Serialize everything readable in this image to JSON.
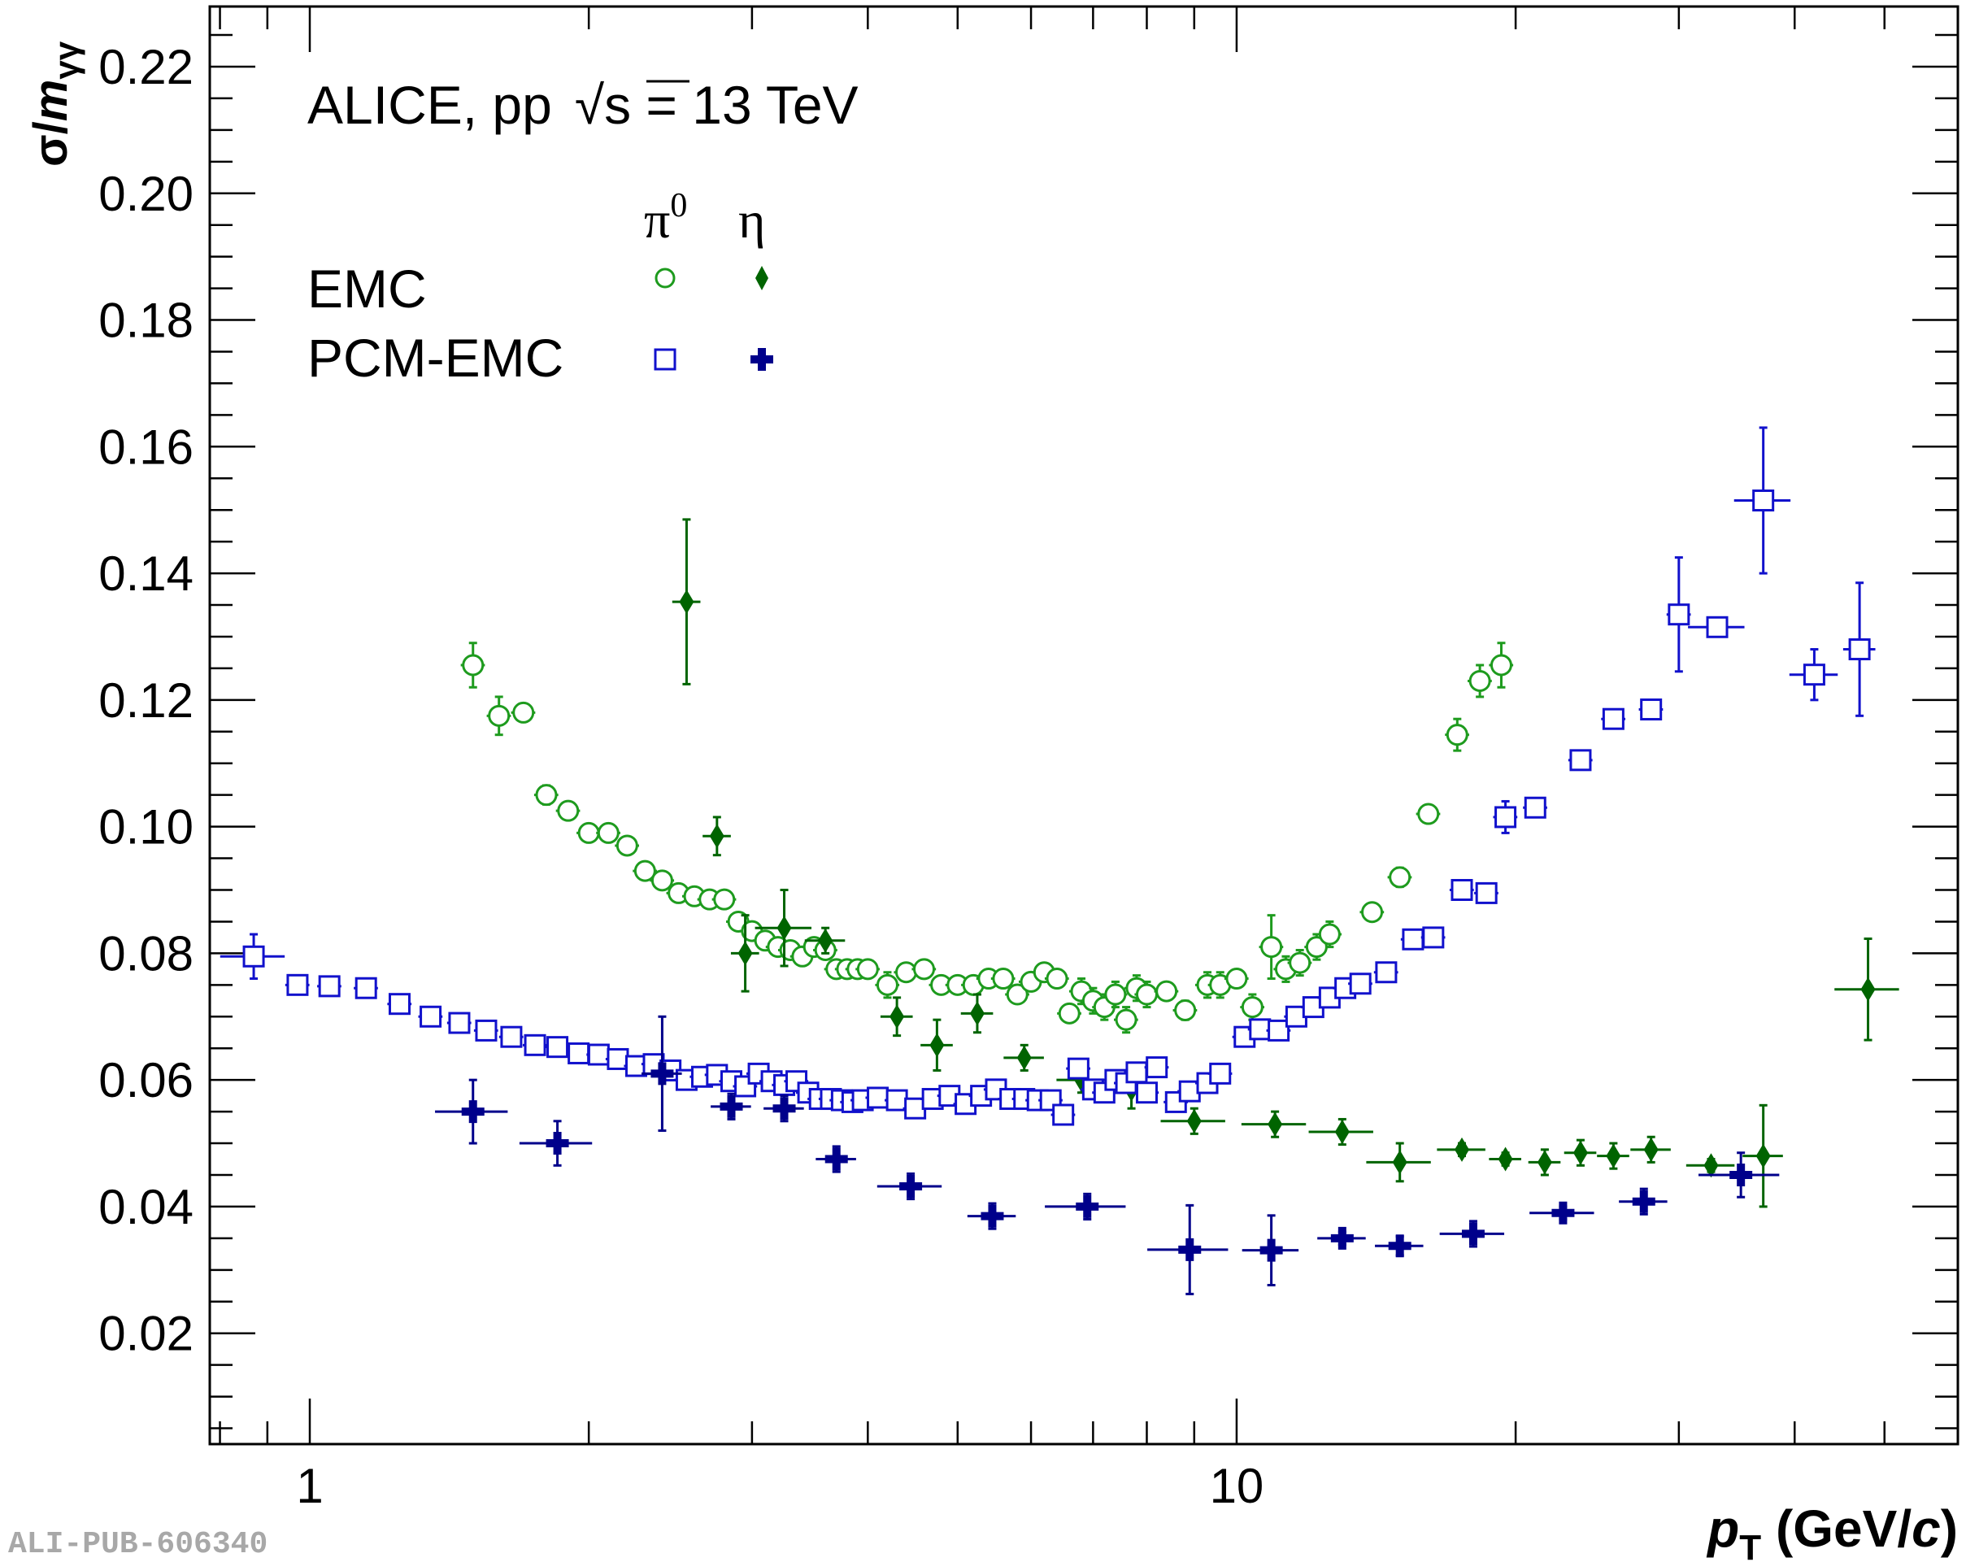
{
  "chart_data": {
    "type": "scatter",
    "x_scale": "log",
    "xlim": [
      0.78,
      60
    ],
    "ylim": [
      0.0025,
      0.2295
    ],
    "xlabel_main": "p",
    "xlabel_sub": "T",
    "xlabel_unit_pre": " (GeV/",
    "xlabel_unit_c": "c",
    "xlabel_unit_post": ")",
    "ylabel_main": "σ/",
    "ylabel_m": "m",
    "ylabel_sub": "γγ",
    "x_ticks": [
      1,
      10
    ],
    "x_tick_labels": [
      "1",
      "10"
    ],
    "y_ticks": [
      0.02,
      0.04,
      0.06,
      0.08,
      0.1,
      0.12,
      0.14,
      0.16,
      0.18,
      0.2,
      0.22
    ],
    "y_tick_labels": [
      "0.02",
      "0.04",
      "0.06",
      "0.08",
      "0.10",
      "0.12",
      "0.14",
      "0.16",
      "0.18",
      "0.20",
      "0.22"
    ],
    "title_experiment": "ALICE, pp",
    "title_energy_prefix": "√",
    "title_energy_s": "s",
    "title_energy_rest": " = 13 TeV",
    "legend": {
      "col_pi0": "π",
      "col_pi0_sup": "0",
      "col_eta": "η",
      "row_emc": "EMC",
      "row_pcm": "PCM-EMC"
    },
    "watermark": "ALI-PUB-606340",
    "series": [
      {
        "name": "EMC π0",
        "marker": "open-circle",
        "color": "#1e9b1e",
        "points": [
          [
            1.5,
            0.1255,
            0.0035,
            0.03
          ],
          [
            1.6,
            0.1175,
            0.003,
            0.03
          ],
          [
            1.7,
            0.118,
            0.001,
            0.03
          ],
          [
            1.8,
            0.105,
            0.0015,
            0.03
          ],
          [
            1.9,
            0.1025,
            0.001,
            0.03
          ],
          [
            2.0,
            0.099,
            0.001,
            0.03
          ],
          [
            2.1,
            0.099,
            0.001,
            0.03
          ],
          [
            2.2,
            0.097,
            0.001,
            0.03
          ],
          [
            2.3,
            0.093,
            0.001,
            0.03
          ],
          [
            2.4,
            0.0915,
            0.001,
            0.03
          ],
          [
            2.5,
            0.0895,
            0.001,
            0.03
          ],
          [
            2.6,
            0.089,
            0.001,
            0.03
          ],
          [
            2.7,
            0.0885,
            0.001,
            0.03
          ],
          [
            2.8,
            0.0885,
            0.001,
            0.03
          ],
          [
            2.9,
            0.085,
            0.001,
            0.03
          ],
          [
            3.0,
            0.0835,
            0.001,
            0.03
          ],
          [
            3.1,
            0.082,
            0.001,
            0.03
          ],
          [
            3.2,
            0.081,
            0.001,
            0.03
          ],
          [
            3.3,
            0.0805,
            0.001,
            0.03
          ],
          [
            3.4,
            0.0795,
            0.001,
            0.03
          ],
          [
            3.5,
            0.081,
            0.001,
            0.03
          ],
          [
            3.6,
            0.0805,
            0.001,
            0.03
          ],
          [
            3.7,
            0.0775,
            0.001,
            0.03
          ],
          [
            3.8,
            0.0775,
            0.001,
            0.03
          ],
          [
            3.9,
            0.0775,
            0.001,
            0.03
          ],
          [
            4.0,
            0.0775,
            0.001,
            0.03
          ],
          [
            4.2,
            0.075,
            0.002,
            0.03
          ],
          [
            4.4,
            0.077,
            0.001,
            0.03
          ],
          [
            4.6,
            0.0775,
            0.001,
            0.03
          ],
          [
            4.8,
            0.075,
            0.001,
            0.03
          ],
          [
            5.0,
            0.075,
            0.001,
            0.03
          ],
          [
            5.2,
            0.075,
            0.001,
            0.03
          ],
          [
            5.4,
            0.076,
            0.001,
            0.03
          ],
          [
            5.6,
            0.076,
            0.001,
            0.03
          ],
          [
            5.8,
            0.0735,
            0.001,
            0.03
          ],
          [
            6.0,
            0.0755,
            0.001,
            0.03
          ],
          [
            6.2,
            0.077,
            0.001,
            0.03
          ],
          [
            6.4,
            0.076,
            0.001,
            0.03
          ],
          [
            6.6,
            0.0705,
            0.001,
            0.03
          ],
          [
            6.8,
            0.074,
            0.002,
            0.03
          ],
          [
            7.0,
            0.0725,
            0.002,
            0.03
          ],
          [
            7.2,
            0.0715,
            0.002,
            0.03
          ],
          [
            7.4,
            0.0735,
            0.002,
            0.03
          ],
          [
            7.6,
            0.0695,
            0.002,
            0.03
          ],
          [
            7.8,
            0.0745,
            0.002,
            0.03
          ],
          [
            8.0,
            0.0735,
            0.002,
            0.03
          ],
          [
            8.4,
            0.074,
            0.001,
            0.03
          ],
          [
            8.8,
            0.071,
            0.0015,
            0.03
          ],
          [
            9.3,
            0.075,
            0.002,
            0.03
          ],
          [
            9.6,
            0.075,
            0.002,
            0.03
          ],
          [
            10.0,
            0.076,
            0.001,
            0.03
          ],
          [
            10.4,
            0.0715,
            0.002,
            0.03
          ],
          [
            10.9,
            0.081,
            0.005,
            0.03
          ],
          [
            11.3,
            0.0775,
            0.002,
            0.03
          ],
          [
            11.7,
            0.0785,
            0.002,
            0.03
          ],
          [
            12.2,
            0.081,
            0.002,
            0.03
          ],
          [
            12.6,
            0.083,
            0.002,
            0.03
          ],
          [
            14.0,
            0.0865,
            0.001,
            0.03
          ],
          [
            15.0,
            0.092,
            0.0015,
            0.03
          ],
          [
            16.1,
            0.102,
            0.001,
            0.03
          ],
          [
            17.3,
            0.1145,
            0.0025,
            0.03
          ],
          [
            18.3,
            0.123,
            0.0025,
            0.03
          ],
          [
            19.3,
            0.1255,
            0.0035,
            0.03
          ]
        ]
      },
      {
        "name": "EMC η",
        "marker": "filled-diamond",
        "color": "#006400",
        "points": [
          [
            2.55,
            0.1355,
            0.013,
            0.035
          ],
          [
            2.75,
            0.0985,
            0.003,
            0.035
          ],
          [
            2.95,
            0.08,
            0.006,
            0.035
          ],
          [
            3.25,
            0.084,
            0.006,
            0.07
          ],
          [
            3.6,
            0.082,
            0.002,
            0.05
          ],
          [
            4.3,
            0.07,
            0.003,
            0.04
          ],
          [
            4.75,
            0.0655,
            0.004,
            0.04
          ],
          [
            5.25,
            0.0705,
            0.003,
            0.04
          ],
          [
            5.9,
            0.0635,
            0.002,
            0.05
          ],
          [
            6.8,
            0.06,
            0.002,
            0.06
          ],
          [
            7.7,
            0.0585,
            0.003,
            0.06
          ],
          [
            9.0,
            0.0535,
            0.002,
            0.08
          ],
          [
            11.0,
            0.053,
            0.002,
            0.08
          ],
          [
            13.0,
            0.0518,
            0.002,
            0.08
          ],
          [
            15.0,
            0.047,
            0.003,
            0.08
          ],
          [
            17.5,
            0.049,
            0.001,
            0.06
          ],
          [
            19.5,
            0.0475,
            0.001,
            0.04
          ],
          [
            21.5,
            0.047,
            0.002,
            0.04
          ],
          [
            23.5,
            0.0485,
            0.002,
            0.04
          ],
          [
            25.5,
            0.048,
            0.002,
            0.04
          ],
          [
            28.0,
            0.049,
            0.002,
            0.05
          ],
          [
            32.5,
            0.0465,
            0.001,
            0.06
          ],
          [
            37.0,
            0.048,
            0.008,
            0.05
          ],
          [
            48.0,
            0.0743,
            0.008,
            0.08
          ]
        ]
      },
      {
        "name": "PCM-EMC π0",
        "marker": "open-square",
        "color": "#1111cc",
        "points": [
          [
            0.87,
            0.0795,
            0.0035,
            0.08
          ],
          [
            0.97,
            0.075,
            0.001,
            0.03
          ],
          [
            1.05,
            0.0748,
            0.001,
            0.03
          ],
          [
            1.15,
            0.0745,
            0.001,
            0.03
          ],
          [
            1.25,
            0.072,
            0.001,
            0.03
          ],
          [
            1.35,
            0.07,
            0.001,
            0.03
          ],
          [
            1.45,
            0.069,
            0.001,
            0.03
          ],
          [
            1.55,
            0.0678,
            0.001,
            0.03
          ],
          [
            1.65,
            0.0668,
            0.001,
            0.03
          ],
          [
            1.75,
            0.0655,
            0.001,
            0.03
          ],
          [
            1.85,
            0.0652,
            0.001,
            0.03
          ],
          [
            1.95,
            0.0642,
            0.001,
            0.03
          ],
          [
            2.05,
            0.064,
            0.001,
            0.03
          ],
          [
            2.15,
            0.0633,
            0.001,
            0.03
          ],
          [
            2.25,
            0.0622,
            0.001,
            0.03
          ],
          [
            2.35,
            0.0625,
            0.001,
            0.03
          ],
          [
            2.45,
            0.0615,
            0.001,
            0.03
          ],
          [
            2.55,
            0.06,
            0.001,
            0.03
          ],
          [
            2.65,
            0.0605,
            0.001,
            0.03
          ],
          [
            2.75,
            0.0608,
            0.001,
            0.03
          ],
          [
            2.85,
            0.0598,
            0.001,
            0.03
          ],
          [
            2.95,
            0.059,
            0.001,
            0.03
          ],
          [
            3.05,
            0.061,
            0.001,
            0.03
          ],
          [
            3.15,
            0.0598,
            0.001,
            0.03
          ],
          [
            3.25,
            0.0592,
            0.001,
            0.03
          ],
          [
            3.35,
            0.0598,
            0.001,
            0.03
          ],
          [
            3.45,
            0.058,
            0.001,
            0.03
          ],
          [
            3.55,
            0.057,
            0.001,
            0.03
          ],
          [
            3.65,
            0.057,
            0.001,
            0.03
          ],
          [
            3.75,
            0.0568,
            0.001,
            0.03
          ],
          [
            3.85,
            0.0565,
            0.001,
            0.03
          ],
          [
            3.95,
            0.0568,
            0.001,
            0.03
          ],
          [
            4.1,
            0.0572,
            0.001,
            0.03
          ],
          [
            4.3,
            0.0568,
            0.001,
            0.03
          ],
          [
            4.5,
            0.0555,
            0.001,
            0.03
          ],
          [
            4.7,
            0.057,
            0.001,
            0.03
          ],
          [
            4.9,
            0.0575,
            0.001,
            0.03
          ],
          [
            5.1,
            0.0562,
            0.001,
            0.03
          ],
          [
            5.3,
            0.0575,
            0.001,
            0.03
          ],
          [
            5.5,
            0.0585,
            0.001,
            0.03
          ],
          [
            5.7,
            0.057,
            0.001,
            0.03
          ],
          [
            5.9,
            0.057,
            0.001,
            0.03
          ],
          [
            6.1,
            0.0568,
            0.001,
            0.03
          ],
          [
            6.3,
            0.0568,
            0.001,
            0.03
          ],
          [
            6.5,
            0.0545,
            0.001,
            0.03
          ],
          [
            6.75,
            0.0618,
            0.001,
            0.03
          ],
          [
            7.0,
            0.0585,
            0.001,
            0.03
          ],
          [
            7.2,
            0.058,
            0.001,
            0.03
          ],
          [
            7.4,
            0.06,
            0.001,
            0.03
          ],
          [
            7.6,
            0.0595,
            0.001,
            0.03
          ],
          [
            7.8,
            0.0612,
            0.001,
            0.03
          ],
          [
            8.0,
            0.058,
            0.001,
            0.03
          ],
          [
            8.2,
            0.062,
            0.001,
            0.03
          ],
          [
            8.6,
            0.0565,
            0.001,
            0.03
          ],
          [
            8.9,
            0.0582,
            0.001,
            0.03
          ],
          [
            9.3,
            0.0595,
            0.001,
            0.03
          ],
          [
            9.6,
            0.061,
            0.001,
            0.03
          ],
          [
            10.2,
            0.0668,
            0.001,
            0.03
          ],
          [
            10.6,
            0.068,
            0.001,
            0.03
          ],
          [
            11.1,
            0.0678,
            0.001,
            0.03
          ],
          [
            11.6,
            0.07,
            0.001,
            0.03
          ],
          [
            12.1,
            0.0715,
            0.001,
            0.03
          ],
          [
            12.6,
            0.073,
            0.001,
            0.03
          ],
          [
            13.1,
            0.0745,
            0.001,
            0.03
          ],
          [
            13.6,
            0.0752,
            0.001,
            0.03
          ],
          [
            14.5,
            0.077,
            0.001,
            0.03
          ],
          [
            15.5,
            0.0822,
            0.001,
            0.03
          ],
          [
            16.3,
            0.0825,
            0.001,
            0.03
          ],
          [
            17.5,
            0.09,
            0.001,
            0.03
          ],
          [
            18.6,
            0.0895,
            0.001,
            0.03
          ],
          [
            19.5,
            0.1015,
            0.0025,
            0.03
          ],
          [
            21.0,
            0.103,
            0.001,
            0.03
          ],
          [
            23.5,
            0.1105,
            0.001,
            0.03
          ],
          [
            25.5,
            0.117,
            0.001,
            0.03
          ],
          [
            28.0,
            0.1185,
            0.001,
            0.03
          ],
          [
            30.0,
            0.1335,
            0.009,
            0.03
          ],
          [
            33.0,
            0.1315,
            0.0015,
            0.07
          ],
          [
            37.0,
            0.1515,
            0.0115,
            0.07
          ],
          [
            42.0,
            0.124,
            0.004,
            0.06
          ],
          [
            47.0,
            0.128,
            0.0105,
            0.04
          ]
        ]
      },
      {
        "name": "PCM-EMC η",
        "marker": "filled-cross",
        "color": "#00008b",
        "points": [
          [
            1.5,
            0.055,
            0.005,
            0.09
          ],
          [
            1.85,
            0.05,
            0.0035,
            0.09
          ],
          [
            2.4,
            0.061,
            0.009,
            0.05
          ],
          [
            2.85,
            0.0558,
            0.002,
            0.05
          ],
          [
            3.25,
            0.0555,
            0.002,
            0.05
          ],
          [
            3.7,
            0.0475,
            0.002,
            0.05
          ],
          [
            4.45,
            0.0432,
            0.002,
            0.08
          ],
          [
            5.45,
            0.0385,
            0.002,
            0.06
          ],
          [
            6.9,
            0.04,
            0.002,
            0.1
          ],
          [
            8.9,
            0.0332,
            0.007,
            0.1
          ],
          [
            10.9,
            0.0331,
            0.0055,
            0.07
          ],
          [
            13.0,
            0.035,
            0.001,
            0.06
          ],
          [
            15.0,
            0.0338,
            0.0015,
            0.06
          ],
          [
            18.0,
            0.0357,
            0.002,
            0.08
          ],
          [
            22.5,
            0.039,
            0.001,
            0.08
          ],
          [
            27.5,
            0.0408,
            0.002,
            0.06
          ],
          [
            35.0,
            0.045,
            0.0035,
            0.1
          ]
        ]
      }
    ]
  }
}
